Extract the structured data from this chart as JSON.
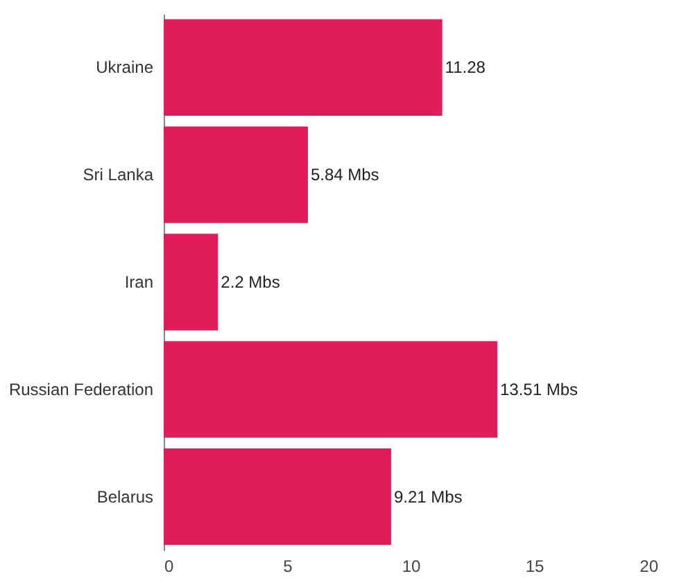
{
  "chart_data": {
    "type": "bar",
    "orientation": "horizontal",
    "categories": [
      "Ukraine",
      "Sri Lanka",
      "Iran",
      "Russian Federation",
      "Belarus"
    ],
    "values": [
      11.28,
      5.84,
      2.2,
      13.51,
      9.21
    ],
    "value_labels": [
      "11.28",
      "5.84 Mbs",
      "2.2 Mbs",
      "13.51 Mbs",
      "9.21 Mbs"
    ],
    "color": "#e01c5a",
    "xlim": [
      0,
      20
    ],
    "xticks": [
      0,
      5,
      10,
      15,
      20
    ],
    "grid": false,
    "legend": false
  }
}
